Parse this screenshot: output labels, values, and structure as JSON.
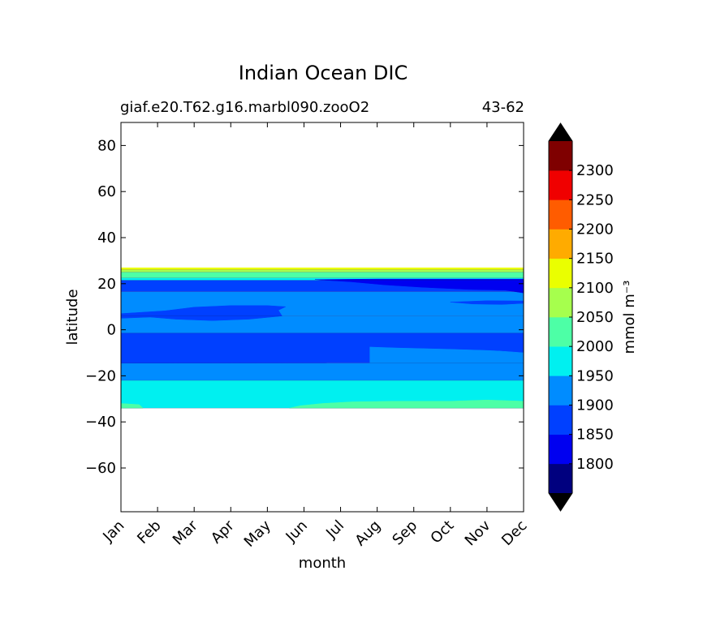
{
  "chart_data": {
    "type": "heatmap",
    "title": "Indian Ocean DIC",
    "subtitle_left": "giaf.e20.T62.g16.marbl090.zooO2",
    "subtitle_right": "43-62",
    "xlabel": "month",
    "ylabel": "latitude",
    "x_ticks": [
      "Jan",
      "Feb",
      "Mar",
      "Apr",
      "May",
      "Jun",
      "Jul",
      "Aug",
      "Sep",
      "Oct",
      "Nov",
      "Dec"
    ],
    "y_ticks": [
      "80",
      "60",
      "40",
      "20",
      "0",
      "−20",
      "−40",
      "−60"
    ],
    "y_tick_values": [
      80,
      60,
      40,
      20,
      0,
      -20,
      -40,
      -60
    ],
    "ylim": [
      -79,
      90
    ],
    "xlim": [
      0,
      11
    ],
    "colorbar": {
      "label": "mmol m⁻³",
      "levels": [
        1750,
        1800,
        1850,
        1900,
        1950,
        2000,
        2050,
        2100,
        2150,
        2200,
        2250,
        2300,
        2350
      ],
      "tick_labels": [
        "1800",
        "1850",
        "1900",
        "1950",
        "2000",
        "2050",
        "2100",
        "2150",
        "2200",
        "2250",
        "2300"
      ],
      "tick_values": [
        1800,
        1850,
        1900,
        1950,
        2000,
        2050,
        2100,
        2150,
        2200,
        2250,
        2300
      ],
      "colors": [
        "#00007f",
        "#0000f0",
        "#0040ff",
        "#008cff",
        "#00f0f0",
        "#4dffa6",
        "#a6ff4d",
        "#eaff00",
        "#ffab00",
        "#ff5c00",
        "#f00000",
        "#7f0000"
      ],
      "extend_low_color": "#000000",
      "extend_high_color": "#000000"
    },
    "bands": [
      {
        "lat_top": 27.0,
        "lat_bottom": 26.0,
        "level": "2100-2150",
        "color": "#eaff00"
      },
      {
        "lat_top": 26.0,
        "lat_bottom": 25.0,
        "level": "2050-2100",
        "color": "#a6ff4d"
      },
      {
        "lat_top": 25.0,
        "lat_bottom": 22.5,
        "level": "2000-2050",
        "color": "#4dffa6"
      },
      {
        "lat_top": 22.5,
        "lat_bottom": 21.5,
        "level": "1950-2000",
        "color": "#00f0f0"
      },
      {
        "lat_top": 21.5,
        "lat_bottom": 16.5,
        "level": "1850-1900",
        "color": "#0040ff"
      },
      {
        "lat_top": 16.5,
        "lat_bottom": 6.0,
        "level": "1900-1950",
        "color": "#008cff"
      },
      {
        "lat_top": 6.0,
        "lat_bottom": -1.5,
        "level": "1900-1950",
        "color": "#008cff"
      },
      {
        "lat_top": -1.5,
        "lat_bottom": -14.5,
        "level": "1850-1900",
        "color": "#0040ff"
      },
      {
        "lat_top": -14.5,
        "lat_bottom": -22.0,
        "level": "1900-1950",
        "color": "#008cff"
      },
      {
        "lat_top": -22.0,
        "lat_bottom": -34.0,
        "level": "1950-2000",
        "color": "#00f0f0"
      }
    ],
    "features": [
      {
        "color": "#0000f0",
        "points": [
          [
            5.3,
            21.8
          ],
          [
            7,
            22
          ],
          [
            9,
            22
          ],
          [
            11,
            22
          ],
          [
            11,
            16
          ],
          [
            10.5,
            17.2
          ],
          [
            9.5,
            17.5
          ],
          [
            8.2,
            18.5
          ],
          [
            7.2,
            19.5
          ],
          [
            6.3,
            20.8
          ]
        ]
      },
      {
        "color": "#0040ff",
        "points": [
          [
            0,
            7
          ],
          [
            1.2,
            8.2
          ],
          [
            2,
            9.8
          ],
          [
            3,
            10.5
          ],
          [
            4,
            10.5
          ],
          [
            4.5,
            10
          ],
          [
            4.3,
            8.5
          ],
          [
            4.4,
            6
          ],
          [
            3.5,
            4.6
          ],
          [
            2.5,
            4
          ],
          [
            1.5,
            4.6
          ],
          [
            0.8,
            5.5
          ],
          [
            0,
            5
          ]
        ]
      },
      {
        "color": "#008cff",
        "points": [
          [
            6.8,
            -7
          ],
          [
            7.5,
            -7.6
          ],
          [
            9,
            -8.2
          ],
          [
            10,
            -8.8
          ],
          [
            11,
            -10
          ],
          [
            11,
            -14.5
          ],
          [
            6.8,
            -14.5
          ]
        ]
      },
      {
        "color": "#0040ff",
        "points": [
          [
            0,
            -1.5
          ],
          [
            11,
            -1.5
          ],
          [
            11,
            -9.5
          ],
          [
            10,
            -8.8
          ],
          [
            9,
            -8.3
          ],
          [
            7.5,
            -7.7
          ],
          [
            6.8,
            -7.3
          ],
          [
            6.6,
            -10
          ],
          [
            6.3,
            -12.5
          ],
          [
            5.6,
            -14.4
          ],
          [
            0,
            -14.5
          ]
        ]
      },
      {
        "color": "#4dffa6",
        "points": [
          [
            4.6,
            -34
          ],
          [
            4.9,
            -33
          ],
          [
            5.5,
            -32
          ],
          [
            6.3,
            -31.3
          ],
          [
            7.5,
            -31
          ],
          [
            9,
            -31
          ],
          [
            10,
            -30.5
          ],
          [
            11,
            -31
          ],
          [
            11,
            -34
          ]
        ]
      },
      {
        "color": "#4dffa6",
        "points": [
          [
            0,
            -32
          ],
          [
            0.5,
            -32.5
          ],
          [
            0.6,
            -34
          ],
          [
            0,
            -34
          ]
        ]
      },
      {
        "color": "#0040ff",
        "points": [
          [
            9,
            12
          ],
          [
            9.6,
            11.2
          ],
          [
            10.4,
            11
          ],
          [
            11,
            11.5
          ],
          [
            11,
            12.5
          ],
          [
            10,
            12.6
          ]
        ]
      }
    ]
  }
}
